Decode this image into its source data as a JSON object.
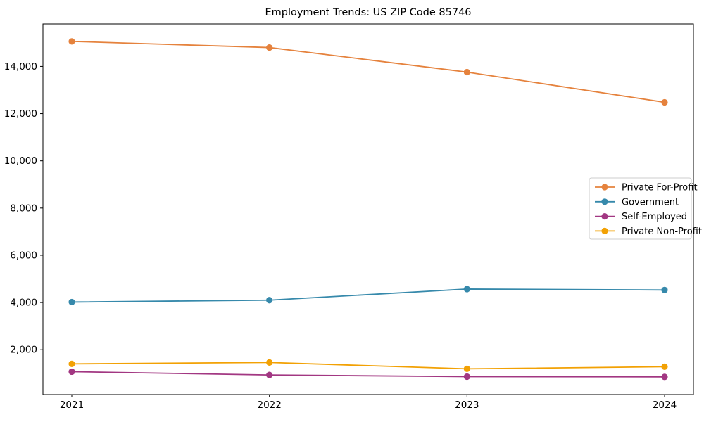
{
  "chart_data": {
    "type": "line",
    "title": "Employment Trends: US ZIP Code 85746",
    "x": [
      2021,
      2022,
      2023,
      2024
    ],
    "x_tick_labels": [
      "2021",
      "2022",
      "2023",
      "2024"
    ],
    "series": [
      {
        "name": "Private For-Profit",
        "color": "#E5823D",
        "values": [
          15060,
          14800,
          13760,
          12480
        ]
      },
      {
        "name": "Government",
        "color": "#3689AB",
        "values": [
          4020,
          4100,
          4570,
          4530
        ]
      },
      {
        "name": "Self-Employed",
        "color": "#A23782",
        "values": [
          1070,
          930,
          860,
          850
        ]
      },
      {
        "name": "Private Non-Profit",
        "color": "#F2A104",
        "values": [
          1400,
          1460,
          1190,
          1280
        ]
      }
    ],
    "ylim": [
      100,
      15800
    ],
    "yticks": [
      2000,
      4000,
      6000,
      8000,
      10000,
      12000,
      14000
    ],
    "ytick_labels": [
      "2,000",
      "4,000",
      "6,000",
      "8,000",
      "10,000",
      "12,000",
      "14,000"
    ],
    "xlabel": "",
    "ylabel": "",
    "grid": false,
    "legend_position": "center-right",
    "marker": "circle",
    "background_color": "#ffffff",
    "frame_color": "#000000",
    "legend_border_color": "#cccccc"
  }
}
